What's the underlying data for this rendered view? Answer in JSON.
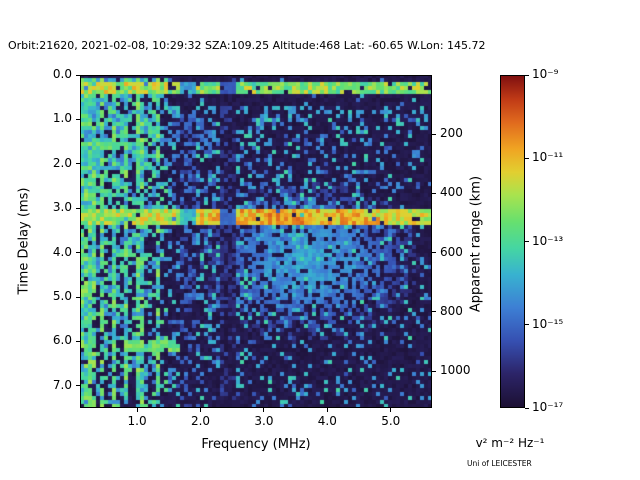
{
  "credit": "Uni of LEICESTER",
  "chart_data": {
    "type": "heatmap",
    "title": "Orbit:21620, 2021-02-08, 10:29:32 SZA:109.25 Altitude:468 Lat: -60.65 W.Lon: 145.72",
    "xlabel": "Frequency (MHz)",
    "ylabel": "Time Delay (ms)",
    "y2label": "Apparent range (km)",
    "xlim": [
      0.1,
      5.65
    ],
    "ylim": [
      0,
      7.5
    ],
    "x_ticks": [
      "1.0",
      "2.0",
      "3.0",
      "4.0",
      "5.0"
    ],
    "y_ticks": [
      "0.0",
      "1.0",
      "2.0",
      "3.0",
      "4.0",
      "5.0",
      "6.0",
      "7.0"
    ],
    "y2_ticks": [
      "200",
      "400",
      "600",
      "800",
      "1000"
    ],
    "y2_km_per_ms": 150,
    "grid": false,
    "colorbar": {
      "unit": "v² m⁻² Hz⁻¹",
      "scale": "log",
      "vmin_exp": -17,
      "vmax_exp": -9,
      "ticks": [
        {
          "exp": -9,
          "label": "10⁻⁹"
        },
        {
          "exp": -11,
          "label": "10⁻¹¹"
        },
        {
          "exp": -13,
          "label": "10⁻¹³"
        },
        {
          "exp": -15,
          "label": "10⁻¹⁵"
        },
        {
          "exp": -17,
          "label": "10⁻¹⁷"
        }
      ],
      "colormap_stops": [
        [
          0.0,
          "#1c1033"
        ],
        [
          0.1,
          "#2c2468"
        ],
        [
          0.2,
          "#3650b2"
        ],
        [
          0.3,
          "#3d7fd4"
        ],
        [
          0.4,
          "#38b2d0"
        ],
        [
          0.48,
          "#45d6a2"
        ],
        [
          0.56,
          "#67e06e"
        ],
        [
          0.64,
          "#a8e34e"
        ],
        [
          0.71,
          "#e2cf30"
        ],
        [
          0.78,
          "#f0a422"
        ],
        [
          0.86,
          "#e06a1e"
        ],
        [
          0.93,
          "#c03a16"
        ],
        [
          1.0,
          "#801010"
        ]
      ]
    },
    "features": [
      "Bright echo band near 0.2-0.4 ms time delay across all frequencies",
      "Strong horizontal echo at ~3.2 ms (apparent range ~480 km), brightest between 2.5 and 4.5 MHz",
      "Diffuse echo cloud between ~3.4 and 5.2 ms over 3-4.5 MHz",
      "Dense plasma-frequency harmonic vertical stripes below ~1.5 MHz spanning all delays",
      "Dark attenuation columns near 1.66-1.90 MHz and 2.28-2.56 MHz",
      "Speckled noise background fading toward high frequency and long delay"
    ],
    "model": {
      "seed": 1234,
      "cols": 88,
      "rows": 84,
      "bg_base": 0.02,
      "bg_noise": 0.05,
      "speckle_amp": 0.85,
      "speckle_f_scale": 4.0,
      "speckle_d_scale": 10.0,
      "quiet_factor": 0.18,
      "speckle_v_base": 0.2,
      "speckle_v_rand": 0.28,
      "top_dark_ms": 0.12,
      "vertical_lines": [
        0.15,
        0.28,
        0.45,
        0.63,
        0.82,
        1.03,
        1.32
      ],
      "vline_width": 0.05,
      "vline_prob": 0.8,
      "vline_v": 0.34,
      "vline_v_rand": 0.3,
      "top_band": {
        "d0": 0.16,
        "d1": 0.45,
        "prob": 0.92,
        "v": 0.46,
        "v_rand": 0.26
      },
      "echo_band": {
        "d0": 3.08,
        "d1": 3.38,
        "prob": 0.95,
        "v": 0.48,
        "v_rand": 0.22,
        "peak_f": 3.5,
        "peak_sigma": 1.6,
        "peak_boost": 0.18
      },
      "blob": {
        "f": 3.7,
        "d": 4.2,
        "sf": 0.85,
        "sd": 0.9,
        "v": 0.3,
        "v_rand": 0.12
      },
      "segments": [
        {
          "f0": 1.5,
          "f1": 5.65,
          "d0": 0.72,
          "d1": 0.95,
          "v": 0.3,
          "p": 0.3
        },
        {
          "f0": 0.8,
          "f1": 1.65,
          "d0": 5.98,
          "d1": 6.22,
          "v": 0.48,
          "p": 0.85
        },
        {
          "f0": 0.12,
          "f1": 1.0,
          "d0": 1.5,
          "d1": 1.68,
          "v": 0.45,
          "p": 0.8
        },
        {
          "f0": 0.12,
          "f1": 0.75,
          "d0": 2.62,
          "d1": 2.8,
          "v": 0.42,
          "p": 0.75
        }
      ],
      "dark_columns": [
        {
          "f0": 2.28,
          "f1": 2.56,
          "factor": 0.25
        },
        {
          "f0": 1.66,
          "f1": 1.9,
          "factor": 0.55
        }
      ]
    }
  }
}
